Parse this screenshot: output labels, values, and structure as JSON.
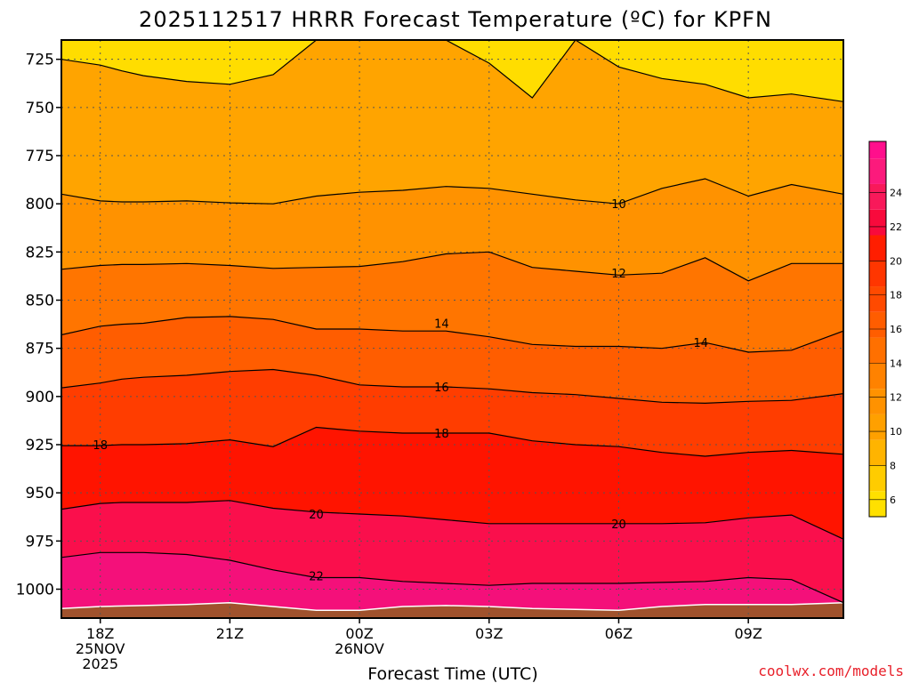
{
  "chart_data": {
    "type": "heatmap",
    "title": "2025112517 HRRR Forecast Temperature (ºC) for KPFN",
    "xlabel": "Forecast Time (UTC)",
    "ylabel": "",
    "y_axis": {
      "range": [
        1015,
        715
      ],
      "ticks": [
        725,
        750,
        775,
        800,
        825,
        850,
        875,
        900,
        925,
        950,
        975,
        1000
      ]
    },
    "x_axis": {
      "range_hours": [
        -0.9,
        17.2
      ],
      "ticks": [
        {
          "hour": 0,
          "lines": [
            "18Z",
            "25NOV",
            "2025"
          ]
        },
        {
          "hour": 3,
          "lines": [
            "21Z"
          ]
        },
        {
          "hour": 6,
          "lines": [
            "00Z",
            "26NOV"
          ]
        },
        {
          "hour": 9,
          "lines": [
            "03Z"
          ]
        },
        {
          "hour": 12,
          "lines": [
            "06Z"
          ]
        },
        {
          "hour": 15,
          "lines": [
            "09Z"
          ]
        }
      ]
    },
    "grid": true,
    "colorbar": {
      "ticks": [
        6,
        8,
        10,
        12,
        14,
        16,
        18,
        20,
        22,
        24
      ],
      "range": [
        5,
        27
      ],
      "colors": [
        "#ffe000",
        "#ffcc00",
        "#ffb400",
        "#ffa000",
        "#ff8c00",
        "#ff7800",
        "#ff6400",
        "#ff4d00",
        "#ff3200",
        "#ff1e00",
        "#f5093c",
        "#f8195a",
        "#fc1a7c",
        "#ff0f8c"
      ]
    },
    "hours": [
      -0.9,
      0,
      0.5,
      1,
      2,
      3,
      4,
      5,
      6,
      7,
      8,
      9,
      10,
      11,
      12,
      13,
      14,
      15,
      16,
      17.2
    ],
    "contours": [
      {
        "level": 8,
        "p": [
          725,
          728,
          731,
          733.5,
          736.5,
          738,
          733,
          715,
          715,
          715,
          715,
          727,
          745,
          715,
          729,
          735,
          738,
          745,
          743,
          747
        ]
      },
      {
        "level": 10,
        "p": [
          795,
          798.5,
          799,
          799,
          798.5,
          799.5,
          800,
          796,
          794,
          793,
          791,
          792,
          795,
          798,
          800,
          792,
          787,
          796,
          790,
          795
        ]
      },
      {
        "level": 12,
        "p": [
          834,
          832,
          831.5,
          831.5,
          831,
          832,
          833.5,
          833,
          832.5,
          830,
          826,
          825,
          833,
          835,
          837,
          836,
          828,
          840,
          831,
          831
        ]
      },
      {
        "level": 14,
        "p": [
          868,
          863.5,
          862.5,
          862,
          859,
          858.5,
          860,
          865,
          865,
          866,
          866,
          869,
          873,
          874,
          874,
          875,
          872,
          877,
          876,
          866
        ]
      },
      {
        "level": 16,
        "p": [
          895.5,
          893,
          891,
          890,
          889,
          887,
          886,
          889,
          894,
          895,
          895,
          896,
          898,
          899,
          901,
          903,
          903.5,
          902.5,
          902,
          898.5
        ]
      },
      {
        "level": 18,
        "p": [
          925.5,
          925.5,
          925,
          925,
          924.5,
          922.5,
          926,
          916,
          918,
          919,
          919,
          919,
          923,
          925,
          926,
          929,
          931,
          929,
          928,
          930
        ]
      },
      {
        "level": 20,
        "p": [
          958.5,
          955.5,
          955,
          955,
          955,
          954,
          958,
          960,
          961,
          962,
          964,
          966,
          966,
          966,
          966,
          966,
          965.5,
          963,
          961.5,
          974
        ]
      },
      {
        "level": 22,
        "p": [
          983.5,
          981,
          981,
          981,
          982,
          985,
          990,
          994,
          994,
          996,
          997,
          998,
          997,
          997,
          997,
          996.5,
          996,
          994,
          995,
          1007
        ]
      }
    ],
    "contour_labels": [
      {
        "level": 10,
        "text": "10",
        "hour": 12,
        "p": 800
      },
      {
        "level": 12,
        "text": "12",
        "hour": 12,
        "p": 836
      },
      {
        "level": 14,
        "text": "14",
        "hour": 7.9,
        "p": 862
      },
      {
        "level": 14,
        "text": "14",
        "hour": 13.9,
        "p": 872
      },
      {
        "level": 16,
        "text": "16",
        "hour": 7.9,
        "p": 895
      },
      {
        "level": 18,
        "text": "18",
        "hour": 0,
        "p": 925
      },
      {
        "level": 18,
        "text": "18",
        "hour": 7.9,
        "p": 919
      },
      {
        "level": 20,
        "text": "20",
        "hour": 5,
        "p": 961
      },
      {
        "level": 20,
        "text": "20",
        "hour": 12,
        "p": 966
      },
      {
        "level": 22,
        "text": "22",
        "hour": 5,
        "p": 993
      }
    ],
    "surface": {
      "hours": [
        -0.9,
        0,
        1,
        2,
        3,
        4,
        5,
        6,
        7,
        8,
        9,
        10,
        11,
        12,
        13,
        14,
        15,
        16,
        17.2
      ],
      "p": [
        1010,
        1009,
        1008.5,
        1008,
        1007,
        1009,
        1011,
        1011,
        1009,
        1008.5,
        1009,
        1010,
        1010.5,
        1011,
        1009,
        1008,
        1008,
        1008,
        1007
      ]
    }
  },
  "credit": "coolwx.com/models"
}
